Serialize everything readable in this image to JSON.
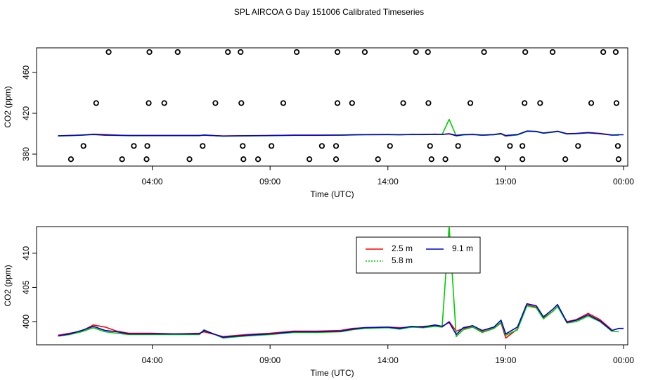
{
  "title": "SPL AIRCOA G  Day 151006  Calibrated Timeseries",
  "chart_data": [
    {
      "type": "line",
      "ylabel": "CO2 (ppm)",
      "xlabel": "Time (UTC)",
      "xlim": [
        -0.91,
        24.18
      ],
      "ylim": [
        368.3,
        484.1
      ],
      "xticks": [
        {
          "value": 4,
          "label": "04:00"
        },
        {
          "value": 9,
          "label": "09:00"
        },
        {
          "value": 14,
          "label": "14:00"
        },
        {
          "value": 19,
          "label": "19:00"
        },
        {
          "value": 24,
          "label": "00:00"
        }
      ],
      "yticks": [
        380,
        420,
        460
      ],
      "legend": false,
      "points": {
        "x": [
          2.15,
          3.88,
          5.08,
          7.21,
          7.75,
          10.13,
          11.86,
          13.02,
          15.19,
          15.7,
          18.08,
          19.83,
          20.99,
          23.14,
          23.67,
          1.62,
          3.85,
          4.51,
          6.68,
          7.78,
          9.56,
          11.86,
          12.48,
          14.65,
          15.72,
          17.5,
          19.8,
          20.46,
          22.63,
          23.7,
          1.08,
          3.22,
          3.79,
          6.14,
          7.84,
          9.06,
          11.2,
          11.8,
          14.09,
          15.79,
          16.98,
          19.18,
          19.71,
          22.07,
          23.76,
          0.55,
          2.72,
          3.76,
          5.58,
          7.87,
          8.49,
          10.67,
          11.8,
          13.58,
          15.85,
          16.44,
          18.64,
          19.71,
          21.53,
          23.79
        ],
        "y": [
          480,
          480,
          480,
          480,
          480,
          480,
          480,
          480,
          480,
          480,
          480,
          480,
          480,
          480,
          480,
          430,
          430,
          430,
          430,
          430,
          430,
          430,
          430,
          430,
          430,
          430,
          430,
          430,
          430,
          430,
          388,
          388,
          388,
          388,
          388,
          388,
          388,
          388,
          388,
          388,
          388,
          388,
          388,
          388,
          388,
          375,
          375,
          375,
          375,
          375,
          375,
          375,
          375,
          375,
          375,
          375,
          375,
          375,
          375,
          375
        ]
      },
      "x": [
        0,
        0.5,
        1,
        1.5,
        2,
        2.5,
        3,
        4,
        5,
        6,
        6.2,
        7,
        8,
        9,
        10,
        11,
        12,
        12.5,
        13,
        14,
        14.5,
        15,
        15.5,
        16,
        16.3,
        16.6,
        16.9,
        17.2,
        17.6,
        18,
        18.5,
        18.8,
        19,
        19.5,
        19.9,
        20.3,
        20.6,
        21,
        21.2,
        21.6,
        22,
        22.5,
        23,
        23.5,
        23.8,
        24
      ],
      "series": [
        {
          "name": "2.5 m",
          "color": "#ff0000",
          "values": [
            398.0,
            398.3,
            398.6,
            399.5,
            399.2,
            398.6,
            398.3,
            398.3,
            398.2,
            398.3,
            398.5,
            397.8,
            398.1,
            398.3,
            398.6,
            398.6,
            398.7,
            399.0,
            399.1,
            399.2,
            399.1,
            399.2,
            399.3,
            399.4,
            399.2,
            400.0,
            398.6,
            399.0,
            399.2,
            398.5,
            399.0,
            399.8,
            397.6,
            398.9,
            402.4,
            402.1,
            400.5,
            401.5,
            402.2,
            400.0,
            400.3,
            401.2,
            400.3,
            398.8,
            null,
            null
          ]
        },
        {
          "name": "5.8 m",
          "color": "#00cc00",
          "values": [
            397.9,
            398.1,
            398.5,
            399.1,
            398.5,
            398.3,
            398.1,
            398.1,
            398.1,
            398.1,
            398.8,
            397.6,
            397.9,
            398.1,
            398.4,
            398.4,
            398.5,
            398.8,
            399.0,
            399.1,
            398.9,
            399.2,
            399.1,
            399.3,
            399.2,
            414.0,
            397.8,
            398.8,
            399.2,
            398.4,
            399.0,
            399.9,
            398.0,
            398.8,
            402.3,
            402.0,
            400.4,
            401.5,
            402.2,
            399.8,
            400.0,
            400.8,
            400.0,
            398.6,
            398.5,
            null
          ]
        },
        {
          "name": "9.1 m",
          "color": "#0000cc",
          "values": [
            397.9,
            398.2,
            398.7,
            399.3,
            398.7,
            398.5,
            398.2,
            398.2,
            398.2,
            398.2,
            398.7,
            397.7,
            398.0,
            398.2,
            398.5,
            398.5,
            398.6,
            398.9,
            399.1,
            399.2,
            399.0,
            399.3,
            399.2,
            399.5,
            399.3,
            399.9,
            398.1,
            399.1,
            399.4,
            398.7,
            399.2,
            400.2,
            398.2,
            399.2,
            402.6,
            402.3,
            400.7,
            401.8,
            402.5,
            399.9,
            400.2,
            401.0,
            400.1,
            398.7,
            399.0,
            399.0
          ]
        }
      ]
    },
    {
      "type": "line",
      "ylabel": "CO2 (ppm)",
      "xlabel": "Time (UTC)",
      "xlim": [
        -0.91,
        24.18
      ],
      "ylim": [
        396.6,
        413.9
      ],
      "xticks": [
        {
          "value": 4,
          "label": "04:00"
        },
        {
          "value": 9,
          "label": "09:00"
        },
        {
          "value": 14,
          "label": "14:00"
        },
        {
          "value": 19,
          "label": "19:00"
        },
        {
          "value": 24,
          "label": "00:00"
        }
      ],
      "yticks": [
        400,
        405,
        410
      ],
      "legend": true,
      "x": [
        0,
        0.5,
        1,
        1.5,
        2,
        2.5,
        3,
        4,
        5,
        6,
        6.2,
        7,
        8,
        9,
        10,
        11,
        12,
        12.5,
        13,
        14,
        14.5,
        15,
        15.5,
        16,
        16.3,
        16.6,
        16.9,
        17.2,
        17.6,
        18,
        18.5,
        18.8,
        19,
        19.5,
        19.9,
        20.3,
        20.6,
        21,
        21.2,
        21.6,
        22,
        22.5,
        23,
        23.5,
        23.8,
        24
      ],
      "series": [
        {
          "name": "2.5 m",
          "color": "#ff0000",
          "values": [
            398.0,
            398.3,
            398.6,
            399.5,
            399.2,
            398.6,
            398.3,
            398.3,
            398.2,
            398.3,
            398.5,
            397.8,
            398.1,
            398.3,
            398.6,
            398.6,
            398.7,
            399.0,
            399.1,
            399.2,
            399.1,
            399.2,
            399.3,
            399.4,
            399.2,
            400.0,
            398.6,
            399.0,
            399.2,
            398.5,
            399.0,
            399.8,
            397.6,
            398.9,
            402.4,
            402.1,
            400.5,
            401.5,
            402.2,
            400.0,
            400.3,
            401.2,
            400.3,
            398.8,
            null,
            null
          ]
        },
        {
          "name": "5.8 m",
          "color": "#00cc00",
          "values": [
            397.9,
            398.1,
            398.5,
            399.1,
            398.5,
            398.3,
            398.1,
            398.1,
            398.1,
            398.1,
            398.8,
            397.6,
            397.9,
            398.1,
            398.4,
            398.4,
            398.5,
            398.8,
            399.0,
            399.1,
            398.9,
            399.2,
            399.1,
            399.3,
            399.2,
            414.0,
            397.8,
            398.8,
            399.2,
            398.4,
            399.0,
            399.9,
            398.0,
            398.8,
            402.3,
            402.0,
            400.4,
            401.5,
            402.2,
            399.8,
            400.0,
            400.8,
            400.0,
            398.6,
            398.5,
            null
          ]
        },
        {
          "name": "9.1 m",
          "color": "#0000cc",
          "values": [
            397.9,
            398.2,
            398.7,
            399.3,
            398.7,
            398.5,
            398.2,
            398.2,
            398.2,
            398.2,
            398.7,
            397.7,
            398.0,
            398.2,
            398.5,
            398.5,
            398.6,
            398.9,
            399.1,
            399.2,
            399.0,
            399.3,
            399.2,
            399.5,
            399.3,
            399.9,
            398.1,
            399.1,
            399.4,
            398.7,
            399.2,
            400.2,
            398.2,
            399.2,
            402.6,
            402.3,
            400.7,
            401.8,
            402.5,
            399.9,
            400.2,
            401.0,
            400.1,
            398.7,
            399.0,
            399.0
          ]
        }
      ]
    }
  ]
}
